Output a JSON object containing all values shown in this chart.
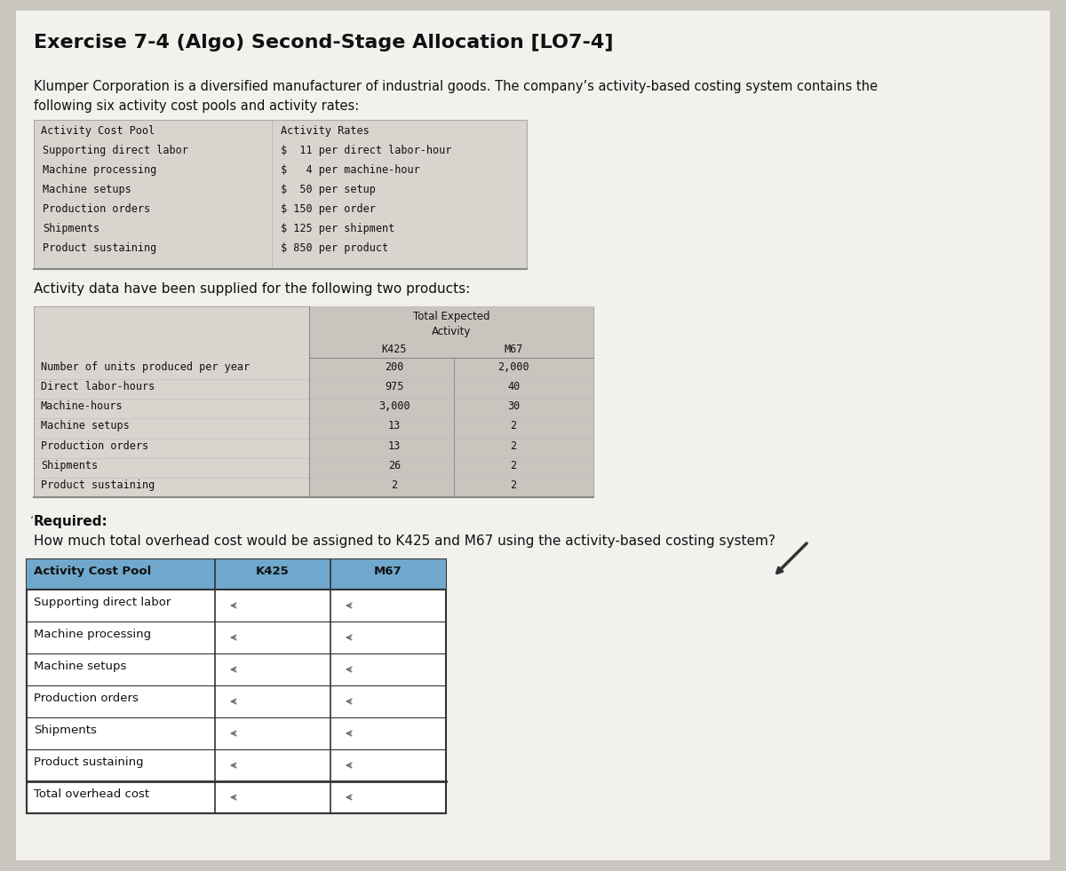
{
  "title": "Exercise 7-4 (Algo) Second-Stage Allocation [LO7-4]",
  "intro_line1": "Klumper Corporation is a diversified manufacturer of industrial goods. The company’s activity-based costing system contains the",
  "intro_line2": "following six activity cost pools and activity rates:",
  "activity_cost_pools": [
    "Supporting direct labor",
    "Machine processing",
    "Machine setups",
    "Production orders",
    "Shipments",
    "Product sustaining"
  ],
  "activity_rates": [
    "$  11 per direct labor-hour",
    "$   4 per machine-hour",
    "$  50 per setup",
    "$ 150 per order",
    "$ 125 per shipment",
    "$ 850 per product"
  ],
  "activity_data_intro": "Activity data have been supplied for the following two products:",
  "activity_data_rows": [
    "Number of units produced per year",
    "Direct labor-hours",
    "Machine-hours",
    "Machine setups",
    "Production orders",
    "Shipments",
    "Product sustaining"
  ],
  "k425_values": [
    "200",
    "975",
    "3,000",
    "13",
    "13",
    "26",
    "2"
  ],
  "m67_values": [
    "2,000",
    "40",
    "30",
    "2",
    "2",
    "2",
    "2"
  ],
  "required_label": "Required:",
  "required_text": "How much total overhead cost would be assigned to K425 and M67 using the activity-based costing system?",
  "answer_table_cols": [
    "Activity Cost Pool",
    "K425",
    "M67"
  ],
  "answer_table_rows": [
    "Supporting direct labor",
    "Machine processing",
    "Machine setups",
    "Production orders",
    "Shipments",
    "Product sustaining",
    "Total overhead cost"
  ],
  "header_bg_color": "#6fa8cc",
  "bg_color": "#c8c6be",
  "page_color": "#f2f1ee",
  "table_gray": "#d8d5ce",
  "table_dark_gray": "#c8c5be"
}
